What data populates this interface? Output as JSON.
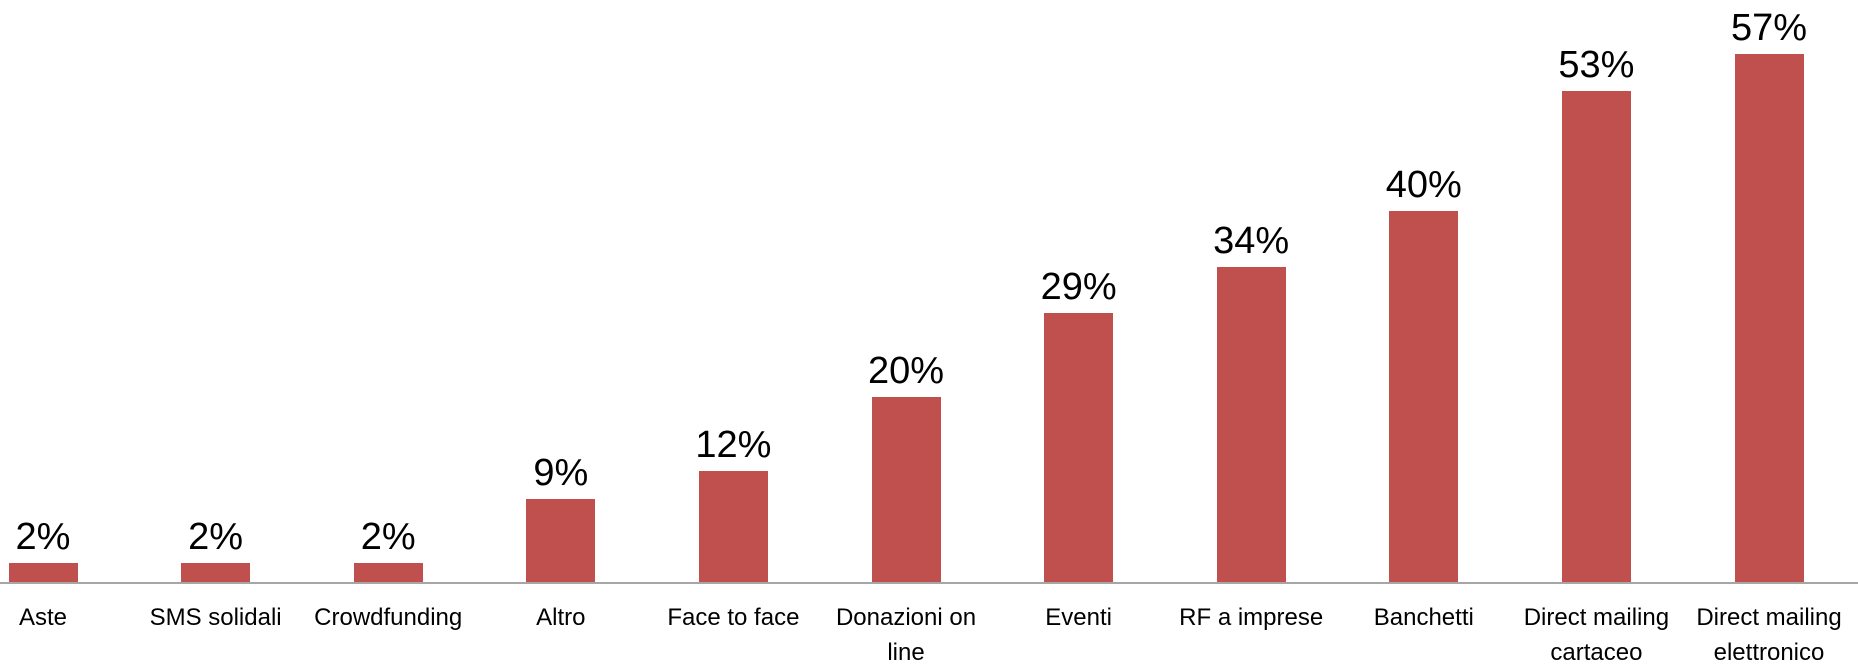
{
  "chart_data": {
    "type": "bar",
    "categories": [
      "Aste",
      "SMS solidali",
      "Crowdfunding",
      "Altro",
      "Face to face",
      "Donazioni on line",
      "Eventi",
      "RF a imprese",
      "Banchetti",
      "Direct mailing cartaceo",
      "Direct mailing elettronico"
    ],
    "values": [
      2,
      2,
      2,
      9,
      12,
      20,
      29,
      34,
      40,
      53,
      57
    ],
    "value_labels": [
      "2%",
      "2%",
      "2%",
      "9%",
      "12%",
      "20%",
      "29%",
      "34%",
      "40%",
      "53%",
      "57%"
    ],
    "color": "#c0504d"
  }
}
